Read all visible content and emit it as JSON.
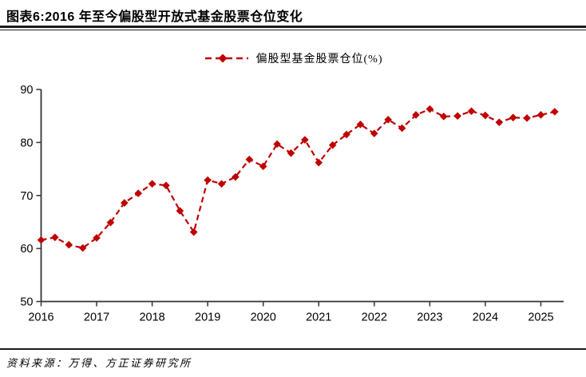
{
  "page": {
    "title": "图表6:2016 年至今偏股型开放式基金股票仓位变化",
    "source": "资料来源：万得、方正证券研究所"
  },
  "legend": {
    "label": "偏股型基金股票仓位(%)"
  },
  "colors": {
    "accent": "#C00000",
    "axis": "#333333",
    "text": "#000000"
  },
  "chart_data": {
    "type": "line",
    "title": "2016年至今偏股型开放式基金股票仓位变化",
    "x": [
      "2016Q1",
      "2016Q2",
      "2016Q3",
      "2016Q4",
      "2017Q1",
      "2017Q2",
      "2017Q3",
      "2017Q4",
      "2018Q1",
      "2018Q2",
      "2018Q3",
      "2018Q4",
      "2019Q1",
      "2019Q2",
      "2019Q3",
      "2019Q4",
      "2020Q1",
      "2020Q2",
      "2020Q3",
      "2020Q4",
      "2021Q1",
      "2021Q2",
      "2021Q3",
      "2021Q4",
      "2022Q1",
      "2022Q2",
      "2022Q3",
      "2022Q4",
      "2023Q1",
      "2023Q2",
      "2023Q3",
      "2023Q4",
      "2024Q1",
      "2024Q2",
      "2024Q3",
      "2024Q4",
      "2025Q1",
      "2025Q2"
    ],
    "series": [
      {
        "name": "偏股型基金股票仓位(%)",
        "color": "#C00000",
        "line_style": "dashed",
        "marker": "diamond",
        "values": [
          61.6,
          62.1,
          60.7,
          60.1,
          62.0,
          64.9,
          68.6,
          70.4,
          72.2,
          71.9,
          67.1,
          63.1,
          72.9,
          72.2,
          73.5,
          76.8,
          75.5,
          79.7,
          78.0,
          80.5,
          76.2,
          79.5,
          81.5,
          83.4,
          81.7,
          84.3,
          82.7,
          85.2,
          86.3,
          84.9,
          85.0,
          85.9,
          85.1,
          83.8,
          84.7,
          84.6,
          85.2,
          85.8
        ]
      }
    ],
    "x_tick_labels": [
      "2016",
      "2017",
      "2018",
      "2019",
      "2020",
      "2021",
      "2022",
      "2023",
      "2024",
      "2025"
    ],
    "y_ticks": [
      50,
      60,
      70,
      80,
      90
    ],
    "ylim": [
      50,
      90
    ],
    "grid": false,
    "legend_position": "top"
  }
}
